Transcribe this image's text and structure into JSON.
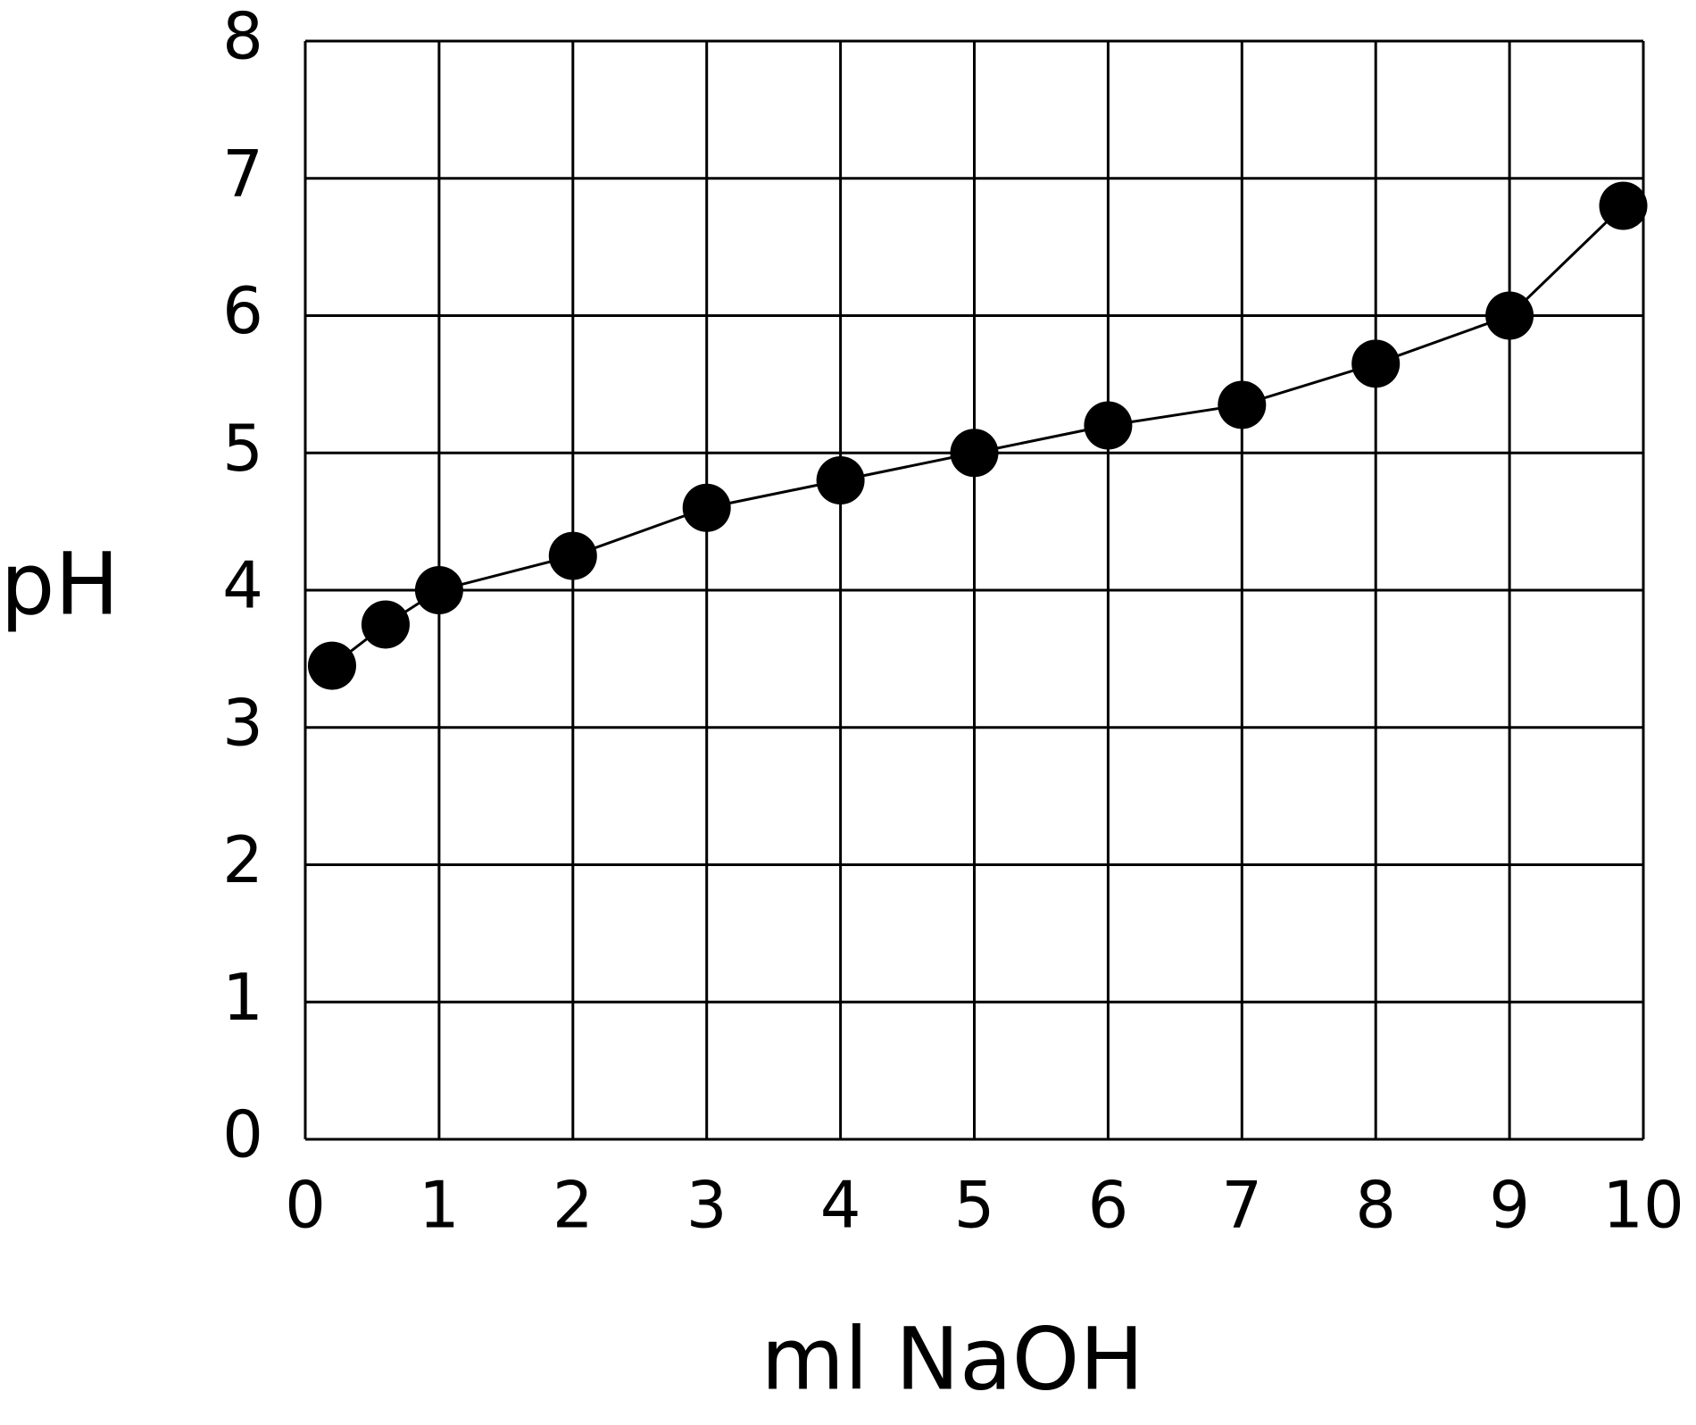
{
  "chart_data": {
    "type": "line",
    "x_label": "ml NaOH",
    "y_label": "pH",
    "x": [
      0.2,
      0.6,
      1,
      2,
      3,
      4,
      5,
      6,
      7,
      8,
      9,
      9.85
    ],
    "series": [
      {
        "color": "#000000",
        "values": [
          3.45,
          3.75,
          4.0,
          4.25,
          4.6,
          4.8,
          5.0,
          5.2,
          5.35,
          5.65,
          6.0,
          6.8
        ]
      }
    ],
    "xlim": [
      0,
      10
    ],
    "xticks": [
      0,
      1,
      2,
      3,
      4,
      5,
      6,
      7,
      8,
      9,
      10
    ],
    "ylim": [
      0,
      8
    ],
    "yticks": [
      0,
      1,
      2,
      3,
      4,
      5,
      6,
      7,
      8
    ],
    "grid": true,
    "markers": true
  }
}
